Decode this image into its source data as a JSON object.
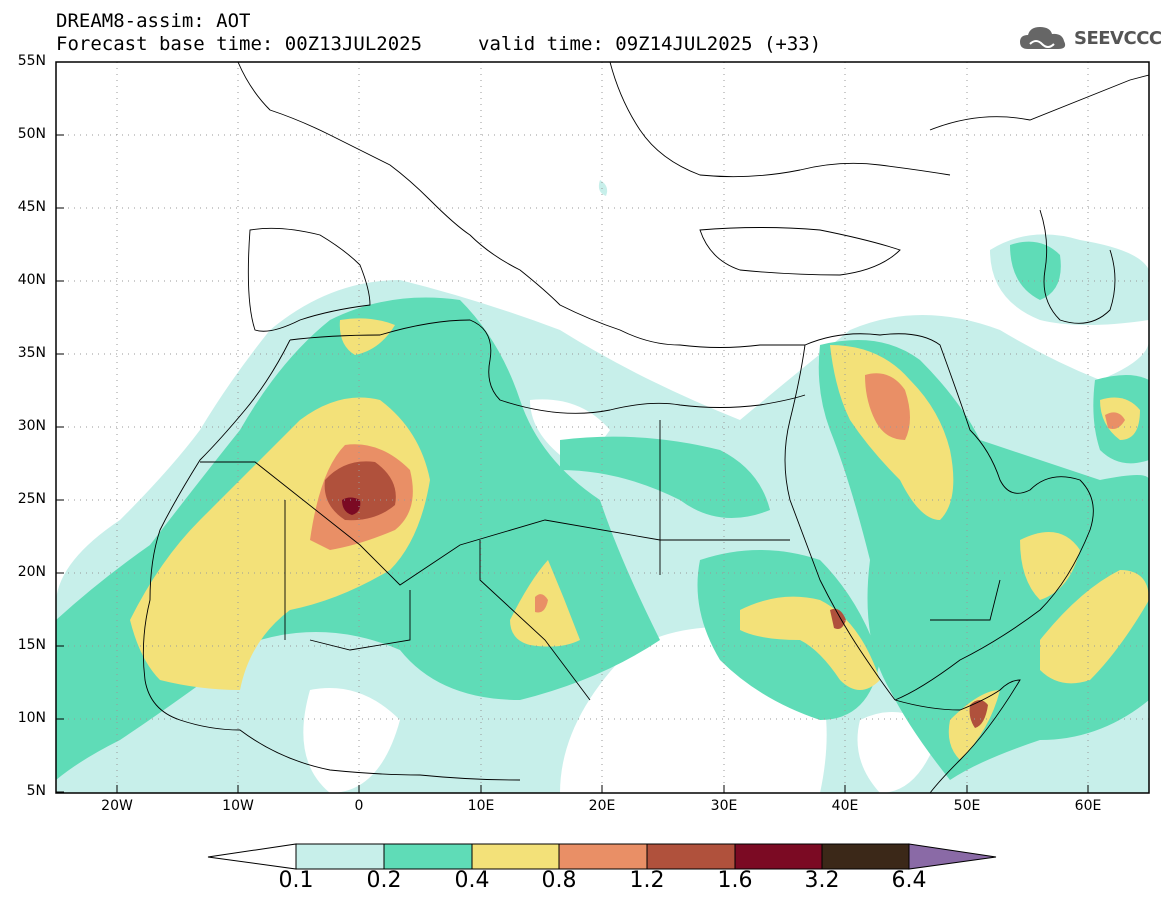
{
  "header": {
    "title": "DREAM8-assim: AOT",
    "base_time": "Forecast base time: 00Z13JUL2025",
    "valid_time": "valid time: 09Z14JUL2025 (+33)"
  },
  "logo": {
    "text": "SEEVCCC",
    "icon": "cloud-icon"
  },
  "map": {
    "lat_labels": [
      "55N",
      "50N",
      "45N",
      "40N",
      "35N",
      "30N",
      "25N",
      "20N",
      "15N",
      "10N",
      "5N"
    ],
    "lon_labels": [
      "20W",
      "10W",
      "0",
      "10E",
      "20E",
      "30E",
      "40E",
      "50E",
      "60E"
    ],
    "lat_range": [
      5,
      55
    ],
    "lon_range": [
      -25,
      65
    ],
    "grid": "dotted"
  },
  "colorbar": {
    "labels": [
      "0.1",
      "0.2",
      "0.4",
      "0.8",
      "1.2",
      "1.6",
      "3.2",
      "6.4"
    ],
    "colors": [
      "#ffffff",
      "#c7efea",
      "#5fdcb7",
      "#f3e179",
      "#e98f66",
      "#b0513c",
      "#7b0a23",
      "#3b2818",
      "#8a6aa6"
    ]
  }
}
